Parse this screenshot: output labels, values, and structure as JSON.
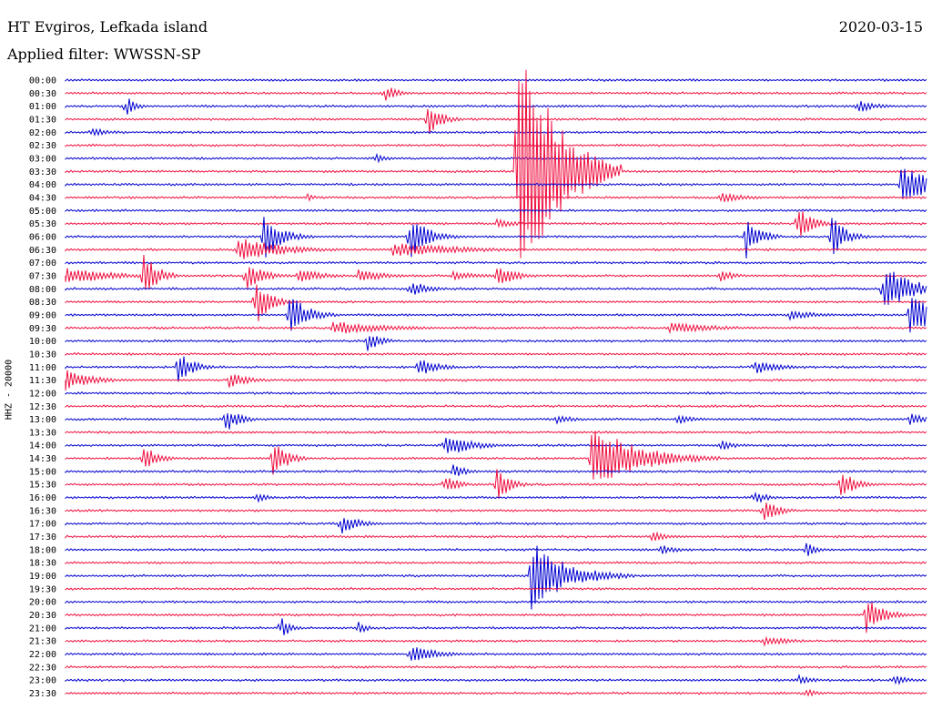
{
  "header": {
    "station": "HT Evgiros, Lefkada island",
    "date": "2020-03-15",
    "filter": "Applied filter: WWSSN-SP"
  },
  "colors": {
    "trace_a": "#0000d0",
    "trace_b": "#ef1040"
  },
  "chart_data": {
    "type": "line",
    "title": "HT Evgiros, Lefkada island",
    "date": "2020-03-15",
    "subtitle": "Applied filter: WWSSN-SP",
    "ylabel": "HHZ - 20000",
    "row_labels": [
      "00:00",
      "00:30",
      "01:00",
      "01:30",
      "02:00",
      "02:30",
      "03:00",
      "03:30",
      "04:00",
      "04:30",
      "05:00",
      "05:30",
      "06:00",
      "06:30",
      "07:00",
      "07:30",
      "08:00",
      "08:30",
      "09:00",
      "09:30",
      "10:00",
      "10:30",
      "11:00",
      "11:30",
      "12:00",
      "12:30",
      "13:00",
      "13:30",
      "14:00",
      "14:30",
      "15:00",
      "15:30",
      "16:00",
      "16:30",
      "17:00",
      "17:30",
      "18:00",
      "18:30",
      "19:00",
      "19:30",
      "20:00",
      "20:30",
      "21:00",
      "21:30",
      "22:00",
      "22:30",
      "23:00",
      "23:30"
    ],
    "row_minutes": 30,
    "series_colors_alternating": [
      "blue",
      "red"
    ],
    "events": [
      {
        "row": 1,
        "x": 0.37,
        "amp": 10,
        "dur": 0.015
      },
      {
        "row": 2,
        "x": 0.07,
        "amp": 13,
        "dur": 0.01
      },
      {
        "row": 2,
        "x": 0.92,
        "amp": 8,
        "dur": 0.02
      },
      {
        "row": 3,
        "x": 0.42,
        "amp": 20,
        "dur": 0.015
      },
      {
        "row": 4,
        "x": 0.03,
        "amp": 6,
        "dur": 0.02
      },
      {
        "row": 6,
        "x": 0.36,
        "amp": 8,
        "dur": 0.01
      },
      {
        "row": 7,
        "x": 0.525,
        "amp": 170,
        "dur": 0.04
      },
      {
        "row": 8,
        "x": 0.97,
        "amp": 22,
        "dur": 0.04
      },
      {
        "row": 9,
        "x": 0.28,
        "amp": 5,
        "dur": 0.01
      },
      {
        "row": 9,
        "x": 0.76,
        "amp": 6,
        "dur": 0.03
      },
      {
        "row": 11,
        "x": 0.5,
        "amp": 6,
        "dur": 0.02
      },
      {
        "row": 11,
        "x": 0.85,
        "amp": 22,
        "dur": 0.015
      },
      {
        "row": 12,
        "x": 0.23,
        "amp": 26,
        "dur": 0.02
      },
      {
        "row": 12,
        "x": 0.4,
        "amp": 26,
        "dur": 0.02
      },
      {
        "row": 12,
        "x": 0.79,
        "amp": 26,
        "dur": 0.015
      },
      {
        "row": 12,
        "x": 0.89,
        "amp": 26,
        "dur": 0.015
      },
      {
        "row": 13,
        "x": 0.2,
        "amp": 14,
        "dur": 0.05
      },
      {
        "row": 13,
        "x": 0.38,
        "amp": 8,
        "dur": 0.08
      },
      {
        "row": 15,
        "x": 0.0,
        "amp": 10,
        "dur": 0.05
      },
      {
        "row": 15,
        "x": 0.09,
        "amp": 30,
        "dur": 0.015
      },
      {
        "row": 15,
        "x": 0.21,
        "amp": 16,
        "dur": 0.02
      },
      {
        "row": 15,
        "x": 0.27,
        "amp": 8,
        "dur": 0.03
      },
      {
        "row": 15,
        "x": 0.34,
        "amp": 8,
        "dur": 0.03
      },
      {
        "row": 15,
        "x": 0.45,
        "amp": 6,
        "dur": 0.03
      },
      {
        "row": 15,
        "x": 0.5,
        "amp": 14,
        "dur": 0.02
      },
      {
        "row": 15,
        "x": 0.76,
        "amp": 8,
        "dur": 0.015
      },
      {
        "row": 16,
        "x": 0.4,
        "amp": 10,
        "dur": 0.02
      },
      {
        "row": 16,
        "x": 0.95,
        "amp": 30,
        "dur": 0.03
      },
      {
        "row": 17,
        "x": 0.22,
        "amp": 30,
        "dur": 0.015
      },
      {
        "row": 18,
        "x": 0.26,
        "amp": 26,
        "dur": 0.02
      },
      {
        "row": 18,
        "x": 0.84,
        "amp": 6,
        "dur": 0.03
      },
      {
        "row": 18,
        "x": 0.98,
        "amp": 26,
        "dur": 0.03
      },
      {
        "row": 19,
        "x": 0.31,
        "amp": 8,
        "dur": 0.06
      },
      {
        "row": 19,
        "x": 0.7,
        "amp": 6,
        "dur": 0.06
      },
      {
        "row": 20,
        "x": 0.35,
        "amp": 12,
        "dur": 0.015
      },
      {
        "row": 22,
        "x": 0.13,
        "amp": 22,
        "dur": 0.015
      },
      {
        "row": 22,
        "x": 0.41,
        "amp": 12,
        "dur": 0.02
      },
      {
        "row": 22,
        "x": 0.8,
        "amp": 8,
        "dur": 0.03
      },
      {
        "row": 23,
        "x": 0.0,
        "amp": 12,
        "dur": 0.03
      },
      {
        "row": 23,
        "x": 0.19,
        "amp": 10,
        "dur": 0.02
      },
      {
        "row": 26,
        "x": 0.185,
        "amp": 16,
        "dur": 0.015
      },
      {
        "row": 26,
        "x": 0.57,
        "amp": 6,
        "dur": 0.02
      },
      {
        "row": 26,
        "x": 0.71,
        "amp": 6,
        "dur": 0.02
      },
      {
        "row": 26,
        "x": 0.98,
        "amp": 10,
        "dur": 0.015
      },
      {
        "row": 28,
        "x": 0.44,
        "amp": 14,
        "dur": 0.03
      },
      {
        "row": 28,
        "x": 0.76,
        "amp": 6,
        "dur": 0.02
      },
      {
        "row": 29,
        "x": 0.09,
        "amp": 18,
        "dur": 0.015
      },
      {
        "row": 29,
        "x": 0.24,
        "amp": 26,
        "dur": 0.015
      },
      {
        "row": 29,
        "x": 0.61,
        "amp": 40,
        "dur": 0.05
      },
      {
        "row": 30,
        "x": 0.45,
        "amp": 8,
        "dur": 0.015
      },
      {
        "row": 31,
        "x": 0.44,
        "amp": 12,
        "dur": 0.015
      },
      {
        "row": 31,
        "x": 0.5,
        "amp": 20,
        "dur": 0.015
      },
      {
        "row": 31,
        "x": 0.9,
        "amp": 18,
        "dur": 0.015
      },
      {
        "row": 32,
        "x": 0.22,
        "amp": 6,
        "dur": 0.015
      },
      {
        "row": 32,
        "x": 0.8,
        "amp": 8,
        "dur": 0.015
      },
      {
        "row": 33,
        "x": 0.81,
        "amp": 16,
        "dur": 0.015
      },
      {
        "row": 34,
        "x": 0.32,
        "amp": 12,
        "dur": 0.02
      },
      {
        "row": 35,
        "x": 0.68,
        "amp": 6,
        "dur": 0.02
      },
      {
        "row": 36,
        "x": 0.69,
        "amp": 6,
        "dur": 0.02
      },
      {
        "row": 36,
        "x": 0.86,
        "amp": 10,
        "dur": 0.01
      },
      {
        "row": 38,
        "x": 0.54,
        "amp": 40,
        "dur": 0.04
      },
      {
        "row": 41,
        "x": 0.93,
        "amp": 20,
        "dur": 0.02
      },
      {
        "row": 42,
        "x": 0.25,
        "amp": 14,
        "dur": 0.01
      },
      {
        "row": 42,
        "x": 0.34,
        "amp": 8,
        "dur": 0.01
      },
      {
        "row": 43,
        "x": 0.81,
        "amp": 6,
        "dur": 0.03
      },
      {
        "row": 44,
        "x": 0.4,
        "amp": 10,
        "dur": 0.03
      },
      {
        "row": 46,
        "x": 0.85,
        "amp": 6,
        "dur": 0.02
      },
      {
        "row": 46,
        "x": 0.96,
        "amp": 6,
        "dur": 0.02
      },
      {
        "row": 47,
        "x": 0.86,
        "amp": 6,
        "dur": 0.01
      }
    ]
  }
}
